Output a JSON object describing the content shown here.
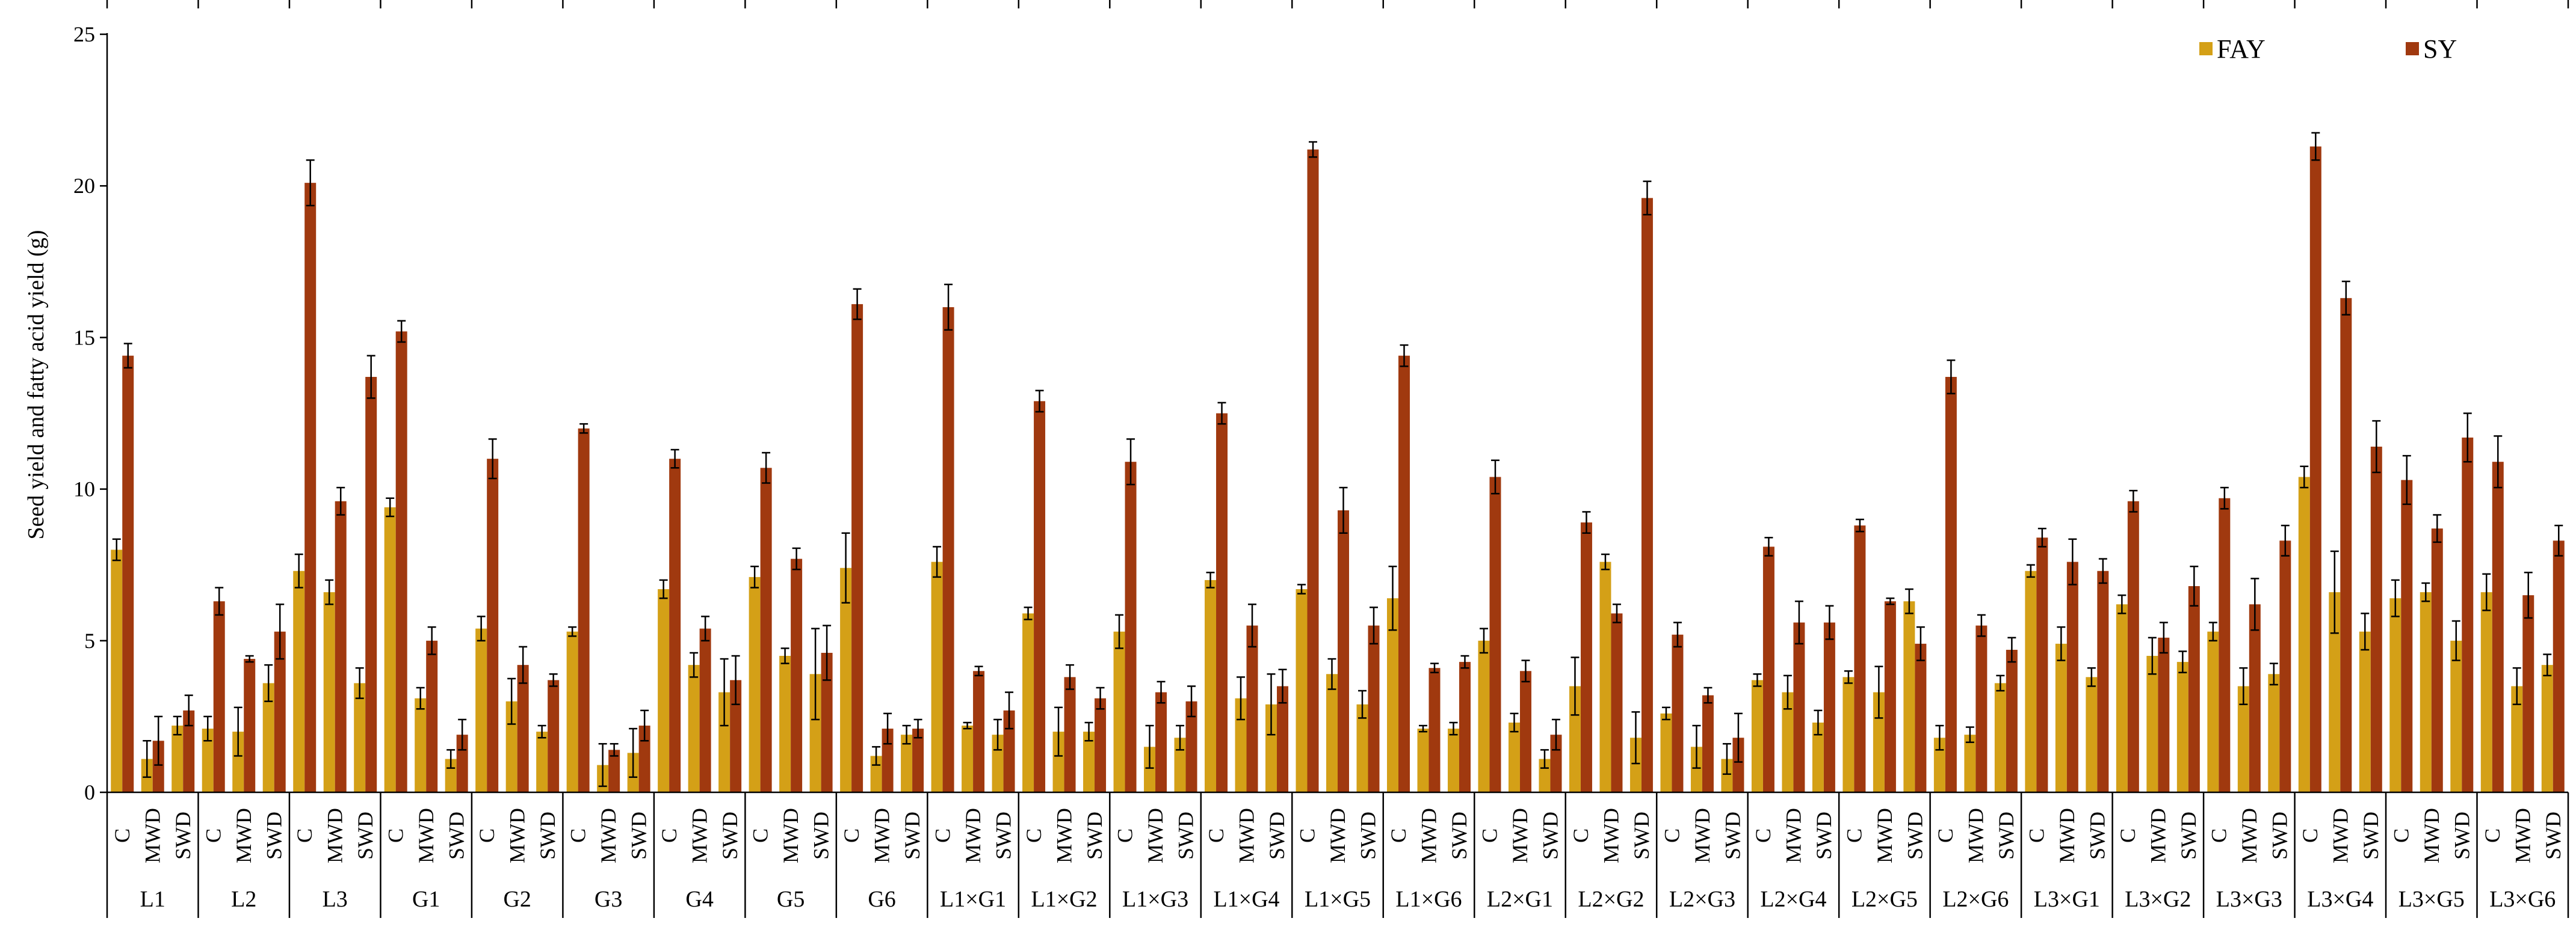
{
  "chart_data": {
    "type": "bar",
    "ylabel": "Seed yield and fatty acid yield (g)",
    "ylim": [
      0,
      25
    ],
    "yticks": [
      "0",
      "5",
      "10",
      "15",
      "20",
      "25"
    ],
    "grid": false,
    "legend_position": "top-right",
    "conditions": [
      "C",
      "MWD",
      "SWD"
    ],
    "groups": [
      "L1",
      "L2",
      "L3",
      "G1",
      "G2",
      "G3",
      "G4",
      "G5",
      "G6",
      "L1×G1",
      "L1×G2",
      "L1×G3",
      "L1×G4",
      "L1×G5",
      "L1×G6",
      "L2×G1",
      "L2×G2",
      "L2×G3",
      "L2×G4",
      "L2×G5",
      "L2×G6",
      "L3×G1",
      "L3×G2",
      "L3×G3",
      "L3×G4",
      "L3×G5",
      "L3×G6"
    ],
    "series": [
      {
        "name": "FAY",
        "color": "#D4A017",
        "values": [
          [
            8.0,
            1.1,
            2.2
          ],
          [
            2.1,
            2.0,
            3.6
          ],
          [
            7.3,
            6.6,
            3.6
          ],
          [
            9.4,
            3.1,
            1.1
          ],
          [
            5.4,
            3.0,
            2.0
          ],
          [
            5.3,
            0.9,
            1.3
          ],
          [
            6.7,
            4.2,
            3.3
          ],
          [
            7.1,
            4.5,
            3.9
          ],
          [
            7.4,
            1.2,
            1.9
          ],
          [
            7.6,
            2.2,
            1.9
          ],
          [
            5.9,
            2.0,
            2.0
          ],
          [
            5.3,
            1.5,
            1.8
          ],
          [
            7.0,
            3.1,
            2.9
          ],
          [
            6.7,
            3.9,
            2.9
          ],
          [
            6.4,
            2.1,
            2.1
          ],
          [
            5.0,
            2.3,
            1.1
          ],
          [
            3.5,
            7.6,
            1.8
          ],
          [
            2.6,
            1.5,
            1.1
          ],
          [
            3.7,
            3.3,
            2.3
          ],
          [
            3.8,
            3.3,
            6.3
          ],
          [
            1.8,
            1.9,
            3.6
          ],
          [
            7.3,
            4.9,
            3.8
          ],
          [
            6.2,
            4.5,
            4.3
          ],
          [
            5.3,
            3.5,
            3.9
          ],
          [
            10.4,
            6.6,
            5.3
          ],
          [
            6.4,
            6.6,
            5.0
          ],
          [
            6.6,
            3.5,
            4.2
          ]
        ],
        "errors": [
          [
            0.35,
            0.6,
            0.3
          ],
          [
            0.4,
            0.8,
            0.6
          ],
          [
            0.55,
            0.4,
            0.5
          ],
          [
            0.3,
            0.35,
            0.3
          ],
          [
            0.4,
            0.75,
            0.2
          ],
          [
            0.15,
            0.7,
            0.8
          ],
          [
            0.3,
            0.4,
            1.1
          ],
          [
            0.35,
            0.25,
            1.5
          ],
          [
            1.15,
            0.3,
            0.3
          ],
          [
            0.5,
            0.1,
            0.5
          ],
          [
            0.2,
            0.8,
            0.3
          ],
          [
            0.55,
            0.7,
            0.4
          ],
          [
            0.25,
            0.7,
            1.0
          ],
          [
            0.15,
            0.5,
            0.45
          ],
          [
            1.05,
            0.1,
            0.2
          ],
          [
            0.4,
            0.3,
            0.3
          ],
          [
            0.95,
            0.25,
            0.85
          ],
          [
            0.2,
            0.7,
            0.5
          ],
          [
            0.2,
            0.55,
            0.4
          ],
          [
            0.2,
            0.85,
            0.4
          ],
          [
            0.4,
            0.25,
            0.25
          ],
          [
            0.2,
            0.55,
            0.3
          ],
          [
            0.3,
            0.6,
            0.35
          ],
          [
            0.3,
            0.6,
            0.35
          ],
          [
            0.35,
            1.35,
            0.6
          ],
          [
            0.6,
            0.3,
            0.65
          ],
          [
            0.6,
            0.6,
            0.35
          ]
        ]
      },
      {
        "name": "SY",
        "color": "#A0390F",
        "values": [
          [
            14.4,
            1.7,
            2.7
          ],
          [
            6.3,
            4.4,
            5.3
          ],
          [
            20.1,
            9.6,
            13.7
          ],
          [
            15.2,
            5.0,
            1.9
          ],
          [
            11.0,
            4.2,
            3.7
          ],
          [
            12.0,
            1.4,
            2.2
          ],
          [
            11.0,
            5.4,
            3.7
          ],
          [
            10.7,
            7.7,
            4.6
          ],
          [
            16.1,
            2.1,
            2.1
          ],
          [
            16.0,
            4.0,
            2.7
          ],
          [
            12.9,
            3.8,
            3.1
          ],
          [
            10.9,
            3.3,
            3.0
          ],
          [
            12.5,
            5.5,
            3.5
          ],
          [
            21.2,
            9.3,
            5.5
          ],
          [
            14.4,
            4.1,
            4.3
          ],
          [
            10.4,
            4.0,
            1.9
          ],
          [
            8.9,
            5.9,
            19.6
          ],
          [
            5.2,
            3.2,
            1.8
          ],
          [
            8.1,
            5.6,
            5.6
          ],
          [
            8.8,
            6.3,
            4.9
          ],
          [
            13.7,
            5.5,
            4.7
          ],
          [
            8.4,
            7.6,
            7.3
          ],
          [
            9.6,
            5.1,
            6.8
          ],
          [
            9.7,
            6.2,
            8.3
          ],
          [
            21.3,
            16.3,
            11.4
          ],
          [
            10.3,
            8.7,
            11.7
          ],
          [
            10.9,
            6.5,
            8.3
          ]
        ],
        "errors": [
          [
            0.4,
            0.8,
            0.5
          ],
          [
            0.45,
            0.1,
            0.9
          ],
          [
            0.75,
            0.45,
            0.7
          ],
          [
            0.35,
            0.45,
            0.5
          ],
          [
            0.65,
            0.6,
            0.2
          ],
          [
            0.15,
            0.2,
            0.5
          ],
          [
            0.3,
            0.4,
            0.8
          ],
          [
            0.5,
            0.35,
            0.9
          ],
          [
            0.5,
            0.5,
            0.3
          ],
          [
            0.75,
            0.15,
            0.6
          ],
          [
            0.35,
            0.4,
            0.35
          ],
          [
            0.75,
            0.35,
            0.5
          ],
          [
            0.35,
            0.7,
            0.55
          ],
          [
            0.25,
            0.75,
            0.6
          ],
          [
            0.35,
            0.15,
            0.2
          ],
          [
            0.55,
            0.35,
            0.5
          ],
          [
            0.35,
            0.3,
            0.55
          ],
          [
            0.4,
            0.25,
            0.8
          ],
          [
            0.3,
            0.7,
            0.55
          ],
          [
            0.2,
            0.1,
            0.55
          ],
          [
            0.55,
            0.35,
            0.4
          ],
          [
            0.3,
            0.75,
            0.4
          ],
          [
            0.35,
            0.5,
            0.65
          ],
          [
            0.35,
            0.85,
            0.5
          ],
          [
            0.45,
            0.55,
            0.85
          ],
          [
            0.8,
            0.45,
            0.8
          ],
          [
            0.85,
            0.75,
            0.5
          ]
        ]
      }
    ]
  }
}
